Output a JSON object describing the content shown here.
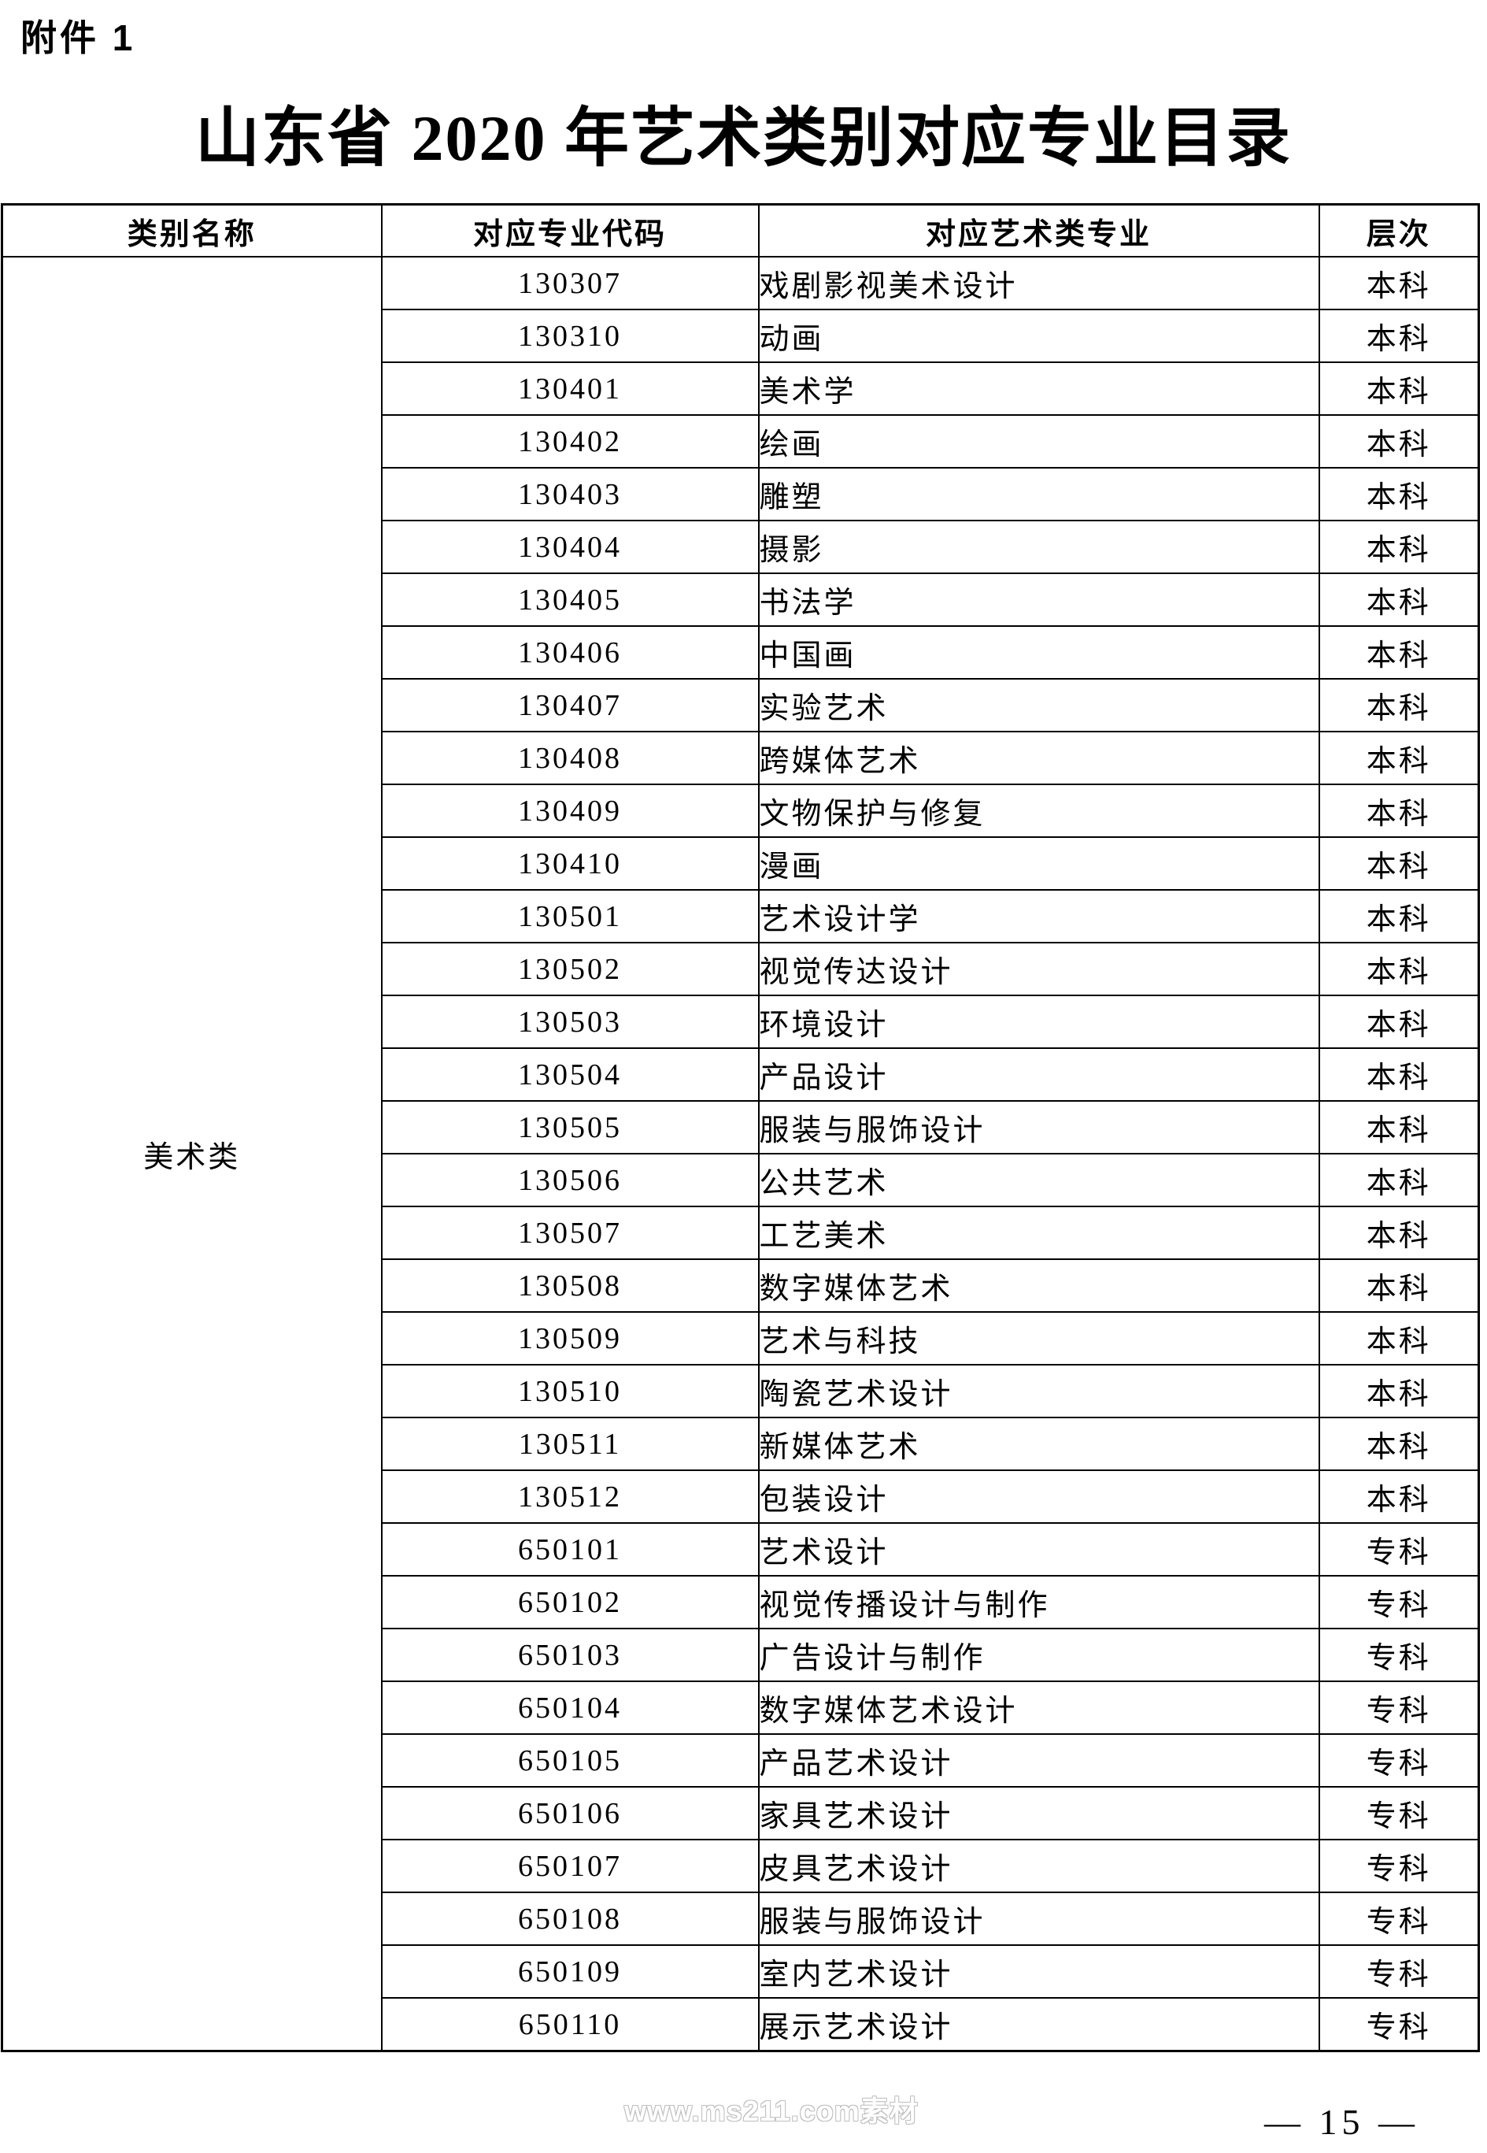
{
  "page": {
    "attachment_label": "附件 1",
    "title": "山东省 2020 年艺术类别对应专业目录",
    "watermark": "www.ms211.com素材",
    "page_number": "— 15 —"
  },
  "table": {
    "headers": [
      "类别名称",
      "对应专业代码",
      "对应艺术类专业",
      "层次"
    ],
    "category": "美术类",
    "rows": [
      {
        "code": "130307",
        "major": "戏剧影视美术设计",
        "level": "本科"
      },
      {
        "code": "130310",
        "major": "动画",
        "level": "本科"
      },
      {
        "code": "130401",
        "major": "美术学",
        "level": "本科"
      },
      {
        "code": "130402",
        "major": "绘画",
        "level": "本科"
      },
      {
        "code": "130403",
        "major": "雕塑",
        "level": "本科"
      },
      {
        "code": "130404",
        "major": "摄影",
        "level": "本科"
      },
      {
        "code": "130405",
        "major": "书法学",
        "level": "本科"
      },
      {
        "code": "130406",
        "major": "中国画",
        "level": "本科"
      },
      {
        "code": "130407",
        "major": "实验艺术",
        "level": "本科"
      },
      {
        "code": "130408",
        "major": "跨媒体艺术",
        "level": "本科"
      },
      {
        "code": "130409",
        "major": "文物保护与修复",
        "level": "本科"
      },
      {
        "code": "130410",
        "major": "漫画",
        "level": "本科"
      },
      {
        "code": "130501",
        "major": "艺术设计学",
        "level": "本科"
      },
      {
        "code": "130502",
        "major": "视觉传达设计",
        "level": "本科"
      },
      {
        "code": "130503",
        "major": "环境设计",
        "level": "本科"
      },
      {
        "code": "130504",
        "major": "产品设计",
        "level": "本科"
      },
      {
        "code": "130505",
        "major": "服装与服饰设计",
        "level": "本科"
      },
      {
        "code": "130506",
        "major": "公共艺术",
        "level": "本科"
      },
      {
        "code": "130507",
        "major": "工艺美术",
        "level": "本科"
      },
      {
        "code": "130508",
        "major": "数字媒体艺术",
        "level": "本科"
      },
      {
        "code": "130509",
        "major": "艺术与科技",
        "level": "本科"
      },
      {
        "code": "130510",
        "major": "陶瓷艺术设计",
        "level": "本科"
      },
      {
        "code": "130511",
        "major": "新媒体艺术",
        "level": "本科"
      },
      {
        "code": "130512",
        "major": "包装设计",
        "level": "本科"
      },
      {
        "code": "650101",
        "major": "艺术设计",
        "level": "专科"
      },
      {
        "code": "650102",
        "major": "视觉传播设计与制作",
        "level": "专科"
      },
      {
        "code": "650103",
        "major": "广告设计与制作",
        "level": "专科"
      },
      {
        "code": "650104",
        "major": "数字媒体艺术设计",
        "level": "专科"
      },
      {
        "code": "650105",
        "major": "产品艺术设计",
        "level": "专科"
      },
      {
        "code": "650106",
        "major": "家具艺术设计",
        "level": "专科"
      },
      {
        "code": "650107",
        "major": "皮具艺术设计",
        "level": "专科"
      },
      {
        "code": "650108",
        "major": "服装与服饰设计",
        "level": "专科"
      },
      {
        "code": "650109",
        "major": "室内艺术设计",
        "level": "专科"
      },
      {
        "code": "650110",
        "major": "展示艺术设计",
        "level": "专科"
      }
    ]
  }
}
